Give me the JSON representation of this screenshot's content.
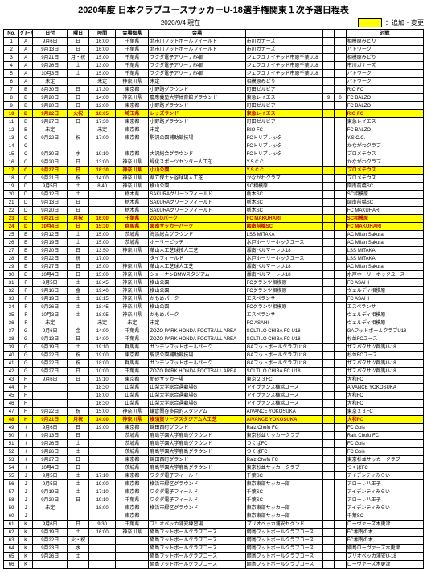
{
  "header": {
    "title": "2020年度 日本クラブユースサッカーU-18選手権関東１次予選日程表",
    "asof": "2020/9/4 現在",
    "legend": "：追加・変更"
  },
  "columns": [
    "No.",
    "ｸﾞﾙｰﾌﾟ",
    "日付",
    "曜日",
    "時間",
    "会場都県",
    "会場",
    "",
    "",
    "",
    "対戦"
  ],
  "rows": [
    {
      "n": 1,
      "g": "A",
      "d": "9月6日",
      "w": "日",
      "t": "16:00",
      "p": "千葉県",
      "v": "北市川フットボールフィールド",
      "h": "市川ガナーズ",
      "s1": "",
      "s2": "",
      "a": "相模原みどり"
    },
    {
      "n": 2,
      "g": "A",
      "d": "9月13日",
      "w": "日",
      "t": "16:00",
      "p": "千葉県",
      "v": "北市川フットボールフィールド",
      "h": "市川ガナーズ",
      "s1": "",
      "s2": "",
      "a": "パトワーク"
    },
    {
      "n": 3,
      "g": "A",
      "d": "9月21日",
      "w": "月・祝",
      "t": "15:00",
      "p": "千葉県",
      "v": "フクダ電子アリーナFA館",
      "h": "ジェフユナイテッド市原千葉U18",
      "s1": "",
      "s2": "",
      "a": "相模原みどり"
    },
    {
      "n": 4,
      "g": "A",
      "d": "9月26日",
      "w": "土",
      "t": "13:00",
      "p": "千葉県",
      "v": "フクダ電子アリーナFA館",
      "h": "ジェフユナイテッド市原千葉U18",
      "s1": "",
      "s2": "",
      "a": "市川ガナーズ"
    },
    {
      "n": 5,
      "g": "A",
      "d": "10月3日",
      "w": "土",
      "t": "15:00",
      "p": "千葉県",
      "v": "フクダ電子アリーナFA館",
      "h": "ジェフユナイテッド市原千葉U18",
      "s1": "",
      "s2": "",
      "a": "パトワーク"
    },
    {
      "n": 6,
      "g": "A",
      "d": "未定",
      "w": "",
      "t": "未定",
      "p": "神奈川県",
      "v": "未定",
      "h": "相模原みどり",
      "s1": "",
      "s2": "",
      "a": "パトワーク"
    },
    {
      "n": 7,
      "g": "B",
      "d": "8月30日",
      "w": "日",
      "t": "17:30",
      "p": "東京都",
      "v": "小野路グラウンド",
      "h": "町田ゼルビア",
      "s1": "",
      "s2": "",
      "a": "RIO FC"
    },
    {
      "n": 8,
      "g": "B",
      "d": "9月20日",
      "w": "日",
      "t": "14:00",
      "p": "神奈川県",
      "v": "慶應義塾大学体育館グラウンド",
      "h": "東急レイエス",
      "s1": "9",
      "s2": "0",
      "a": "FC BALZO"
    },
    {
      "n": 9,
      "g": "B",
      "d": "9月20日",
      "w": "日",
      "t": "12:00",
      "p": "東京都",
      "v": "小野路グラウンド",
      "h": "町田ゼルビア",
      "s1": "",
      "s2": "",
      "a": "FC BALZO"
    },
    {
      "n": 10,
      "g": "B",
      "d": "9月22日",
      "w": "火祝",
      "t": "16:05",
      "p": "埼玉県",
      "v": "レッズランド",
      "h": "東急レイエス",
      "s1": "",
      "s2": "",
      "a": "RIO FC",
      "hl": true
    },
    {
      "n": 11,
      "g": "B",
      "d": "9月27日",
      "w": "日",
      "t": "17:30",
      "p": "東京都",
      "v": "小野路グラウンド",
      "h": "町田ゼルビア",
      "s1": "",
      "s2": "",
      "a": "東急レイエス"
    },
    {
      "n": 12,
      "g": "B",
      "d": "未定",
      "w": "",
      "t": "未定",
      "p": "東京都",
      "v": "未定",
      "h": "RIO FC",
      "s1": "",
      "s2": "",
      "a": "FC BALZO"
    },
    {
      "n": 13,
      "g": "C",
      "d": "9月22日",
      "w": "祝",
      "t": "17:00",
      "p": "東京都",
      "v": "駒沢公園補助競技場",
      "h": "FCトリプレッタ",
      "s1": "",
      "s2": "",
      "a": "Y.S.C.C."
    },
    {
      "n": 14,
      "g": "C",
      "d": "",
      "w": "",
      "t": "",
      "p": "",
      "v": "",
      "h": "FCトリプレッタ",
      "s1": "",
      "s2": "",
      "a": "かながわクラブ"
    },
    {
      "n": 15,
      "g": "C",
      "d": "9月30日",
      "w": "水",
      "t": "19:10",
      "p": "東京都",
      "v": "大沢総合グラウンド",
      "h": "FCトリプレッタ",
      "s1": "",
      "s2": "",
      "a": "プロメテウス"
    },
    {
      "n": 16,
      "g": "C",
      "d": "9月20日",
      "w": "日",
      "t": "13:00",
      "p": "神奈川県",
      "v": "緑化スポーツセンター人工芝",
      "h": "Y.S.C.C.",
      "s1": "",
      "s2": "",
      "a": "かながわクラブ"
    },
    {
      "n": 17,
      "g": "C",
      "d": "9月27日",
      "w": "日",
      "t": "18:30",
      "p": "神奈川県",
      "v": "小山公園",
      "h": "Y.S.C.C.",
      "s1": "",
      "s2": "",
      "a": "プロメテウス",
      "hl": true
    },
    {
      "n": 18,
      "g": "C",
      "d": "9月21日",
      "w": "祝",
      "t": "14:00",
      "p": "神奈川県",
      "v": "県立保土ヶ谷球場人工芝",
      "h": "かながわクラブ",
      "s1": "",
      "s2": "",
      "a": "プロメテウス"
    },
    {
      "n": 19,
      "g": "D",
      "d": "9月5日",
      "w": "土",
      "t": "8:40",
      "p": "神奈川県",
      "v": "横山公園",
      "h": "SC相模原",
      "s1": "",
      "s2": "",
      "a": "図南前橋SC"
    },
    {
      "n": 20,
      "g": "D",
      "d": "9月12日",
      "w": "土",
      "t": "",
      "p": "栃木県",
      "v": "SAKURAグリーンフィールド",
      "h": "栃木SC",
      "s1": "",
      "s2": "",
      "a": "SC相模原"
    },
    {
      "n": 21,
      "g": "D",
      "d": "9月13日",
      "w": "日",
      "t": "",
      "p": "栃木県",
      "v": "SAKURAグリーンフィールド",
      "h": "栃木SC",
      "s1": "",
      "s2": "",
      "a": "図南前橋SC"
    },
    {
      "n": 22,
      "g": "D",
      "d": "9月20日",
      "w": "日",
      "t": "",
      "p": "栃木県",
      "v": "SAKURAグリーンフィールド",
      "h": "栃木SC",
      "s1": "",
      "s2": "",
      "a": "FC MAKUHARI"
    },
    {
      "n": 23,
      "g": "D",
      "d": "9月21日",
      "w": "月祝",
      "t": "16:00",
      "p": "千葉県",
      "v": "ZOZOパーク",
      "h": "FC MAKUHARI",
      "s1": "",
      "s2": "",
      "a": "SC相模原",
      "hl": true
    },
    {
      "n": 24,
      "g": "D",
      "d": "10月4日",
      "w": "日",
      "t": "15:30",
      "p": "群馬県",
      "v": "図南サッカーパーク",
      "h": "図南前橋SC",
      "s1": "",
      "s2": "",
      "a": "FC MAKUHARI",
      "hl": true
    },
    {
      "n": 25,
      "g": "E",
      "d": "9月12日",
      "w": "土",
      "t": "15:00",
      "p": "茨城県",
      "v": "海浜総合グラウンド",
      "h": "LSS MITAKA",
      "s1": "",
      "s2": "",
      "a": "AC Milan Sakura"
    },
    {
      "n": 26,
      "g": "E",
      "d": "9月19日",
      "w": "土",
      "t": "15:00",
      "p": "茨城県",
      "v": "ホーリーピッチ",
      "h": "水戸ホーリーホックユース",
      "s1": "",
      "s2": "",
      "a": "AC Milan Sakura"
    },
    {
      "n": 27,
      "g": "E",
      "d": "9月20日",
      "w": "日",
      "t": "13:50",
      "p": "神奈川県",
      "v": "葉山人工芝球技人工芝",
      "h": "湘南ベルマーレU-18",
      "s1": "",
      "s2": "",
      "a": "LSS MITAKA"
    },
    {
      "n": 28,
      "g": "E",
      "d": "9月22日",
      "w": "祝",
      "t": "17:00",
      "p": "",
      "v": "タイフィールド",
      "h": "水戸ホーリーホックユース",
      "s1": "",
      "s2": "",
      "a": "LSS MITAKA"
    },
    {
      "n": 29,
      "g": "E",
      "d": "9月27日",
      "w": "日",
      "t": "15:00",
      "p": "神奈川県",
      "v": "葉山人工芝球人工芝",
      "h": "湘南ベルマーレU-18",
      "s1": "",
      "s2": "",
      "a": "AC Milan Sakura"
    },
    {
      "n": 30,
      "g": "E",
      "d": "10月4日",
      "w": "日",
      "t": "15:00",
      "p": "神奈川県",
      "v": "ショーナンBMWスタジアム",
      "h": "湘南ベルマーレU-18",
      "s1": "",
      "s2": "",
      "a": "水戸ホーリーホックユース"
    },
    {
      "n": 31,
      "g": "F",
      "d": "9月5日",
      "w": "土",
      "t": "18:45",
      "p": "神奈川県",
      "v": "横山公園",
      "h": "FCグランツ相模原",
      "s1": "",
      "s2": "",
      "a": "FC ASAHI"
    },
    {
      "n": 32,
      "g": "F",
      "d": "9月16日",
      "w": "金",
      "t": "19:40",
      "p": "神奈川県",
      "v": "横山公園",
      "h": "FCグランツ相模原",
      "s1": "",
      "s2": "",
      "a": "ヴェルディ相模原"
    },
    {
      "n": 33,
      "g": "F",
      "d": "9月19日",
      "w": "土",
      "t": "18:15",
      "p": "神奈川県",
      "v": "かもめパーク",
      "h": "エスペランサ",
      "s1": "",
      "s2": "",
      "a": "FC ASAHI"
    },
    {
      "n": 34,
      "g": "F",
      "d": "9月26日",
      "w": "土",
      "t": "18:45",
      "p": "神奈川県",
      "v": "横山公園",
      "h": "FCグランツ相模原",
      "s1": "",
      "s2": "",
      "a": "エスペランサ"
    },
    {
      "n": 35,
      "g": "F",
      "d": "10月3日",
      "w": "土",
      "t": "18:05",
      "p": "神奈川県",
      "v": "かもめパーク",
      "h": "エスペランサ",
      "s1": "",
      "s2": "",
      "a": "ヴェルディ相模原"
    },
    {
      "n": 36,
      "g": "F",
      "d": "未定",
      "w": "",
      "t": "未定",
      "p": "未定",
      "v": "未定",
      "h": "FC ASAHI",
      "s1": "",
      "s2": "",
      "a": "ヴェルディ相模原"
    },
    {
      "n": 37,
      "g": "G",
      "d": "9月6日",
      "w": "金",
      "t": "14:00",
      "p": "千葉県",
      "v": "ZOZO PARK HONDA FOOTBALL AREA",
      "h": "SOLTILO CHIBA FC U18",
      "s1": "",
      "s2": "",
      "a": "GAフットボールクラブU18"
    },
    {
      "n": 38,
      "g": "G",
      "d": "9月13日",
      "w": "日",
      "t": "14:00",
      "p": "千葉県",
      "v": "ZOZO PARK HONDA FOOTBALL AREA",
      "h": "SOLTILO CHIBA FC U18",
      "s1": "",
      "s2": "",
      "a": "杉並FCユース"
    },
    {
      "n": 39,
      "g": "G",
      "d": "9月19日",
      "w": "土",
      "t": "19:10",
      "p": "群馬県",
      "v": "サンデンフットボールパーク",
      "h": "GAフットボールクラブU18",
      "s1": "",
      "s2": "",
      "a": "ザスパクサツ群馬U-18"
    },
    {
      "n": 40,
      "g": "G",
      "d": "9月22日",
      "w": "祝",
      "t": "19:00",
      "p": "東京都",
      "v": "駒沢公園補助競技場",
      "h": "GAフットボールクラブU18",
      "s1": "",
      "s2": "",
      "a": "杉並FCユース"
    },
    {
      "n": 41,
      "g": "G",
      "d": "9月22日",
      "w": "祝",
      "t": "18:00",
      "p": "群馬県",
      "v": "サンデンフットボールパーク",
      "h": "GAフットボールクラブU18",
      "s1": "",
      "s2": "",
      "a": "ザスパクサツ群馬U-18"
    },
    {
      "n": 42,
      "g": "G",
      "d": "9月27日",
      "w": "日",
      "t": "10:00",
      "p": "千葉県",
      "v": "ZOZO PARK HONDA FOOTBALL AREA",
      "h": "SOLTILO CHIBA FC U18",
      "s1": "",
      "s2": "",
      "a": "ザスパクサツ群馬U-18"
    },
    {
      "n": 43,
      "g": "H",
      "d": "9月6日",
      "w": "日",
      "t": "19:10",
      "p": "東京都",
      "v": "新砂サッカー場",
      "h": "東京２３FC",
      "s1": "",
      "s2": "",
      "a": "大和FC"
    },
    {
      "n": 44,
      "g": "H",
      "d": "",
      "w": "",
      "t": "18:30",
      "p": "山梨県",
      "v": "山梨大学総合運動場G",
      "h": "アイヴァンス横浜ユース",
      "s1": "",
      "s2": "",
      "a": "AIVANCE YOKOSUKA"
    },
    {
      "n": 45,
      "g": "H",
      "d": "",
      "w": "",
      "t": "18:00",
      "p": "山梨県",
      "v": "山梨大学総合運動場G",
      "h": "アイヴァンス横浜ユース",
      "s1": "",
      "s2": "",
      "a": "大和FC"
    },
    {
      "n": 46,
      "g": "H",
      "d": "",
      "w": "",
      "t": "16:30",
      "p": "山梨県",
      "v": "山梨大学総合運動場G",
      "h": "アイヴァンス横浜ユース",
      "s1": "",
      "s2": "",
      "a": "大和FC"
    },
    {
      "n": 47,
      "g": "H",
      "d": "9月22日",
      "w": "祝",
      "t": "15:00",
      "p": "神奈川県",
      "v": "鎌倉関谷多目的スタジアム",
      "h": "AIVANCE YOKOSUKA",
      "s1": "",
      "s2": "",
      "a": "東京２３FC"
    },
    {
      "n": 48,
      "g": "H",
      "d": "9月21日",
      "w": "月祝",
      "t": "14:00",
      "p": "神奈川県",
      "v": "横須賀リーフスタジアム人工芝",
      "h": "AIVANCE YOKOSUKA",
      "s1": "",
      "s2": "",
      "a": "大和FC",
      "hl": true
    },
    {
      "n": 49,
      "g": "I",
      "d": "9月6日",
      "w": "日",
      "t": "19:00",
      "p": "東京都",
      "v": "錦田西町グランド",
      "h": "Raiz Chofu FC",
      "s1": "",
      "s2": "",
      "a": "FC Gois"
    },
    {
      "n": 50,
      "g": "I",
      "d": "9月13日",
      "w": "日",
      "t": "",
      "p": "茨城県",
      "v": "鹿島学園大学鹿島グラウンド",
      "h": "東京杉並サッカークラブ",
      "s1": "",
      "s2": "",
      "a": "Raiz Chofu FC"
    },
    {
      "n": 51,
      "g": "I",
      "d": "9月26日",
      "w": "土",
      "t": "",
      "p": "茨城県",
      "v": "鹿島学園大学鹿島グラウンド",
      "h": "つくばFC",
      "s1": "",
      "s2": "",
      "a": "FC Gois"
    },
    {
      "n": 52,
      "g": "I",
      "d": "9月26日",
      "w": "土",
      "t": "",
      "p": "茨城県",
      "v": "鹿島学園大学鹿島グラウンド",
      "h": "つくばFC",
      "s1": "",
      "s2": "",
      "a": "FC Gois"
    },
    {
      "n": 53,
      "g": "I",
      "d": "9月27日",
      "w": "日",
      "t": "",
      "p": "東京都",
      "v": "錦田西町グランド",
      "h": "Raiz Chofu FC",
      "s1": "",
      "s2": "",
      "a": "東京杉並サッカークラブ"
    },
    {
      "n": 54,
      "g": "I",
      "d": "10月4日",
      "w": "日",
      "t": "",
      "p": "茨城県",
      "v": "鹿島学園大学鹿島グラウンド",
      "h": "東京杉並サッカークラブ",
      "s1": "",
      "s2": "",
      "a": "つくばFC"
    },
    {
      "n": 55,
      "g": "J",
      "d": "9月5日",
      "w": "土",
      "t": "17:10",
      "p": "東京都",
      "v": "ワタダ電子フィールド",
      "h": "千葉SC",
      "s1": "",
      "s2": "",
      "a": "アイデンティみらい"
    },
    {
      "n": 56,
      "g": "J",
      "d": "9月5日",
      "w": "土",
      "t": "19:00",
      "p": "東京都",
      "v": "横浜市緑区グラウンド",
      "h": "東京東部サッカー部",
      "s1": "",
      "s2": "",
      "a": "アローレ八王子"
    },
    {
      "n": 57,
      "g": "J",
      "d": "9月19日",
      "w": "土",
      "t": "17:10",
      "p": "東京都",
      "v": "ワタダ電子フィールド",
      "h": "千葉SC",
      "s1": "",
      "s2": "",
      "a": "アイデンティみらい"
    },
    {
      "n": 58,
      "g": "J",
      "d": "9月20日",
      "w": "日",
      "t": "19:10",
      "p": "千葉県",
      "v": "ワタダ電子フィールド",
      "h": "千葉SC",
      "s1": "",
      "s2": "",
      "a": "アローレ八王子"
    },
    {
      "n": 59,
      "g": "J",
      "d": "未定",
      "w": "",
      "t": "18:00",
      "p": "東京都",
      "v": "横浜市緑区グラウンド",
      "h": "東京東部サッカー部",
      "s1": "",
      "s2": "",
      "a": "アイデンティみらい"
    },
    {
      "n": 60,
      "g": "J",
      "d": "",
      "w": "",
      "t": "",
      "p": "東京都",
      "v": "",
      "h": "東京東部サッカー部",
      "s1": "",
      "s2": "",
      "a": "千葉SC"
    },
    {
      "n": 61,
      "g": "K",
      "d": "9月6日",
      "w": "日",
      "t": "9:30",
      "p": "千葉県",
      "v": "プリオベッカ浦安練習場",
      "h": "プリオベッカ浦安セグンド",
      "s1": "",
      "s2": "",
      "a": "ローヴァーズ木更津"
    },
    {
      "n": 62,
      "g": "K",
      "d": "9月19日",
      "w": "土",
      "t": "16:00",
      "p": "神奈川県",
      "v": "綱島フットボールクラブコース",
      "h": "綱島フットボールクラブコース",
      "s1": "",
      "s2": "",
      "a": "FC湘南の木"
    },
    {
      "n": 63,
      "g": "K",
      "d": "9月22日",
      "w": "火・祝",
      "t": "",
      "p": "",
      "v": "綱島フットボールクラブコース",
      "h": "綱島フットボールクラブコース",
      "s1": "",
      "s2": "",
      "a": "FC湘南の木"
    },
    {
      "n": 64,
      "g": "K",
      "d": "9月23日",
      "w": "水",
      "t": "",
      "p": "",
      "v": "綱島フットボールクラブコース",
      "h": "綱島フットボールクラブコース",
      "s1": "",
      "s2": "",
      "a": "綱島ローヴァーズ木更津"
    },
    {
      "n": 65,
      "g": "K",
      "d": "9月26日",
      "w": "土",
      "t": "",
      "p": "",
      "v": "綱島フットボールクラブコース",
      "h": "綱島フットボールクラブコース",
      "s1": "",
      "s2": "",
      "a": "プリオベッカ浦安U-18"
    },
    {
      "n": 66,
      "g": "K",
      "d": "",
      "w": "",
      "t": "",
      "p": "",
      "v": "綱島フットボールクラブコース",
      "h": "綱島フットボールクラブコース",
      "s1": "",
      "s2": "",
      "a": "ローヴァーズ木更津"
    }
  ]
}
